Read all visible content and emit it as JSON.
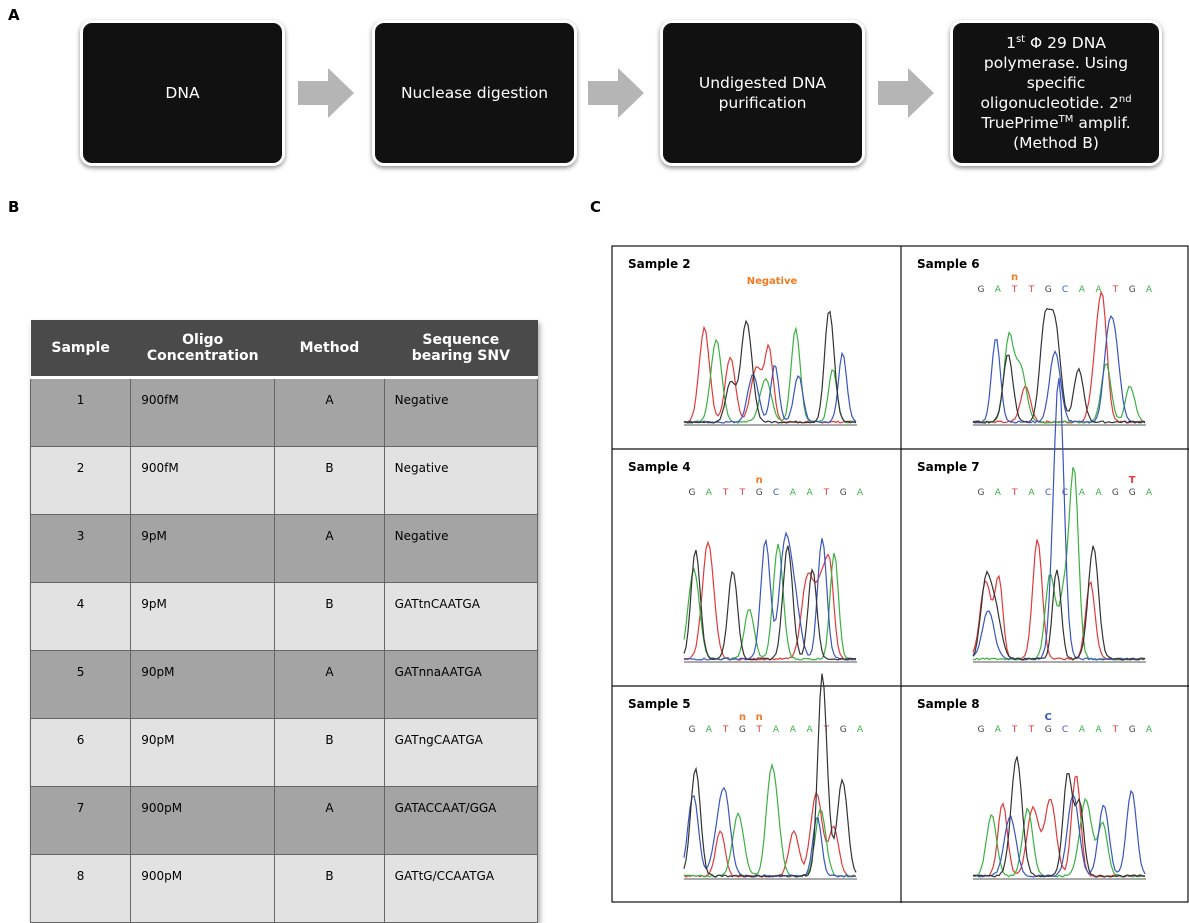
{
  "panel_a": {
    "label": "A",
    "steps": [
      [
        {
          "text": "DNA"
        }
      ],
      [
        {
          "text": "Nuclease digestion"
        }
      ],
      [
        {
          "text": "Undigested DNA purification"
        }
      ],
      [
        {
          "text": "1"
        },
        {
          "text": "st",
          "sup": true
        },
        {
          "text": " Φ 29 DNA polymerase. Using specific oligonucleotide. "
        },
        {
          "text": "2"
        },
        {
          "text": "nd",
          "sup": true
        },
        {
          "text": " TruePrime"
        },
        {
          "text": "TM",
          "sup": true
        },
        {
          "text": " amplif. (Method B)"
        }
      ]
    ]
  },
  "panel_b": {
    "label": "B",
    "table": {
      "header": [
        "Sample",
        "Oligo Concentration",
        "Method",
        "Sequence bearing SNV"
      ],
      "rows": [
        [
          "1",
          "900fM",
          "A",
          "Negative"
        ],
        [
          "2",
          "900fM",
          "B",
          "Negative"
        ],
        [
          "3",
          "9pM",
          "A",
          "Negative"
        ],
        [
          "4",
          "9pM",
          "B",
          "GATtnCAATGA"
        ],
        [
          "5",
          "90pM",
          "A",
          "GATnnaAATGA"
        ],
        [
          "6",
          "90pM",
          "B",
          "GATngCAATGA"
        ],
        [
          "7",
          "900pM",
          "A",
          "GATACCAAT/GGA"
        ],
        [
          "8",
          "900pM",
          "B",
          "GATtG/CCAATGA"
        ]
      ]
    }
  },
  "panel_c": {
    "label": "C",
    "base_colors": {
      "A": "#3cb043",
      "T": "#e03a3a",
      "G": "#444444",
      "C": "#3a55c0"
    },
    "samples": [
      {
        "name": "Sample 2",
        "annotation": {
          "text": "Negative",
          "color": "#f07a22"
        }
      },
      {
        "name": "Sample 6",
        "sequence": [
          "G",
          "A",
          "T",
          "T",
          "G",
          "C",
          "A",
          "A",
          "T",
          "G",
          "A"
        ],
        "annotations": [
          {
            "text": "n",
            "at": 2,
            "color": "#f07a22"
          }
        ]
      },
      {
        "name": "Sample 4",
        "sequence": [
          "G",
          "A",
          "T",
          "T",
          "G",
          "C",
          "A",
          "A",
          "T",
          "G",
          "A"
        ],
        "annotations": [
          {
            "text": "n",
            "at": 4,
            "color": "#f07a22"
          }
        ]
      },
      {
        "name": "Sample 7",
        "sequence": [
          "G",
          "A",
          "T",
          "A",
          "C",
          "C",
          "A",
          "A",
          "G",
          "G",
          "A"
        ],
        "annotations": [
          {
            "text": "T",
            "at": 9,
            "color": "#e03a3a"
          }
        ]
      },
      {
        "name": "Sample 5",
        "sequence": [
          "G",
          "A",
          "T",
          "G",
          "T",
          "A",
          "A",
          "A",
          "T",
          "G",
          "A"
        ],
        "annotations": [
          {
            "text": "n",
            "at": 3,
            "color": "#f07a22"
          },
          {
            "text": "n",
            "at": 4,
            "color": "#f07a22"
          }
        ]
      },
      {
        "name": "Sample 8",
        "sequence": [
          "G",
          "A",
          "T",
          "T",
          "G",
          "C",
          "A",
          "A",
          "T",
          "G",
          "A"
        ],
        "annotations": [
          {
            "text": "C",
            "at": 4,
            "color": "#3a55c0"
          }
        ]
      }
    ]
  }
}
